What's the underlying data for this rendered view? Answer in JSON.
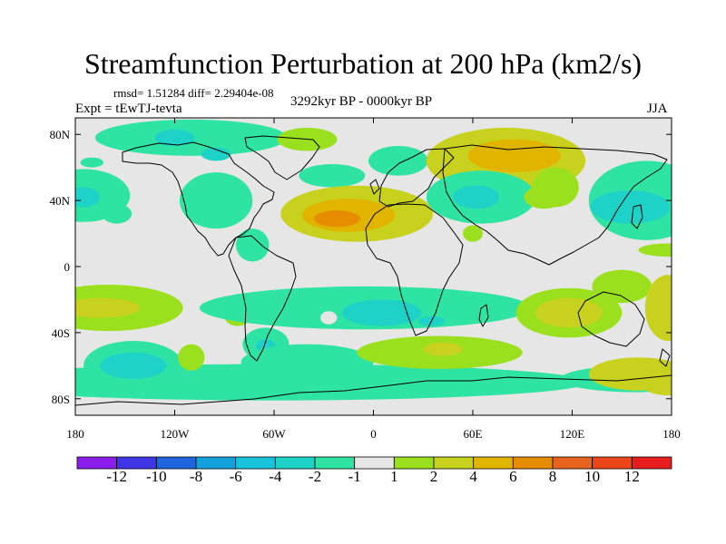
{
  "chart_data": {
    "type": "heatmap",
    "title": "Streamfunction Perturbation at 200 hPa (km2/s)",
    "subtitle_stats": "rmsd= 1.51284 diff= 2.29404e-08",
    "experiment": "Expt = tEwTJ-tevta",
    "period": "3292kyr BP - 0000kyr BP",
    "season": "JJA",
    "x_axis": {
      "range": [
        -180,
        180
      ],
      "ticks": [
        -180,
        -120,
        -60,
        0,
        60,
        120,
        180
      ],
      "tick_labels": [
        "180",
        "120W",
        "60W",
        "0",
        "60E",
        "120E",
        "180"
      ]
    },
    "y_axis": {
      "range": [
        -90,
        90
      ],
      "ticks": [
        80,
        40,
        0,
        -40,
        -80
      ],
      "tick_labels": [
        "80N",
        "40N",
        "0",
        "40S",
        "80S"
      ]
    },
    "colorbar": {
      "boundaries": [
        "-12",
        "-10",
        "-8",
        "-6",
        "-4",
        "-2",
        "-1",
        "1",
        "2",
        "4",
        "6",
        "8",
        "10",
        "12"
      ],
      "colors": [
        "#8c1eeb",
        "#3f35e6",
        "#1e64dc",
        "#13a0dc",
        "#1ac3dc",
        "#1ed2c8",
        "#2ee3a3",
        "#e6e6e6",
        "#9be01e",
        "#c8d21e",
        "#e1b400",
        "#e68c00",
        "#e6641e",
        "#eb4619",
        "#e61e1e"
      ]
    },
    "regions": [
      {
        "lon": -170,
        "lat": 63,
        "rlon": 7,
        "rlat": 3,
        "value": -1.5
      },
      {
        "lon": -110,
        "lat": 78,
        "rlon": 58,
        "rlat": 11,
        "value": -1.5
      },
      {
        "lon": -120,
        "lat": 78,
        "rlon": 12,
        "rlat": 5,
        "value": -2.5
      },
      {
        "lon": -95,
        "lat": 68,
        "rlon": 9,
        "rlat": 4,
        "value": -2.5
      },
      {
        "lon": -175,
        "lat": 43,
        "rlon": 28,
        "rlat": 16,
        "value": -1.5
      },
      {
        "lon": -175,
        "lat": 42,
        "rlon": 10,
        "rlat": 6,
        "value": -3
      },
      {
        "lon": -155,
        "lat": 32,
        "rlon": 9,
        "rlat": 6,
        "value": -1.5
      },
      {
        "lon": -95,
        "lat": 40,
        "rlon": 22,
        "rlat": 17,
        "value": -1.5
      },
      {
        "lon": -73,
        "lat": 13,
        "rlon": 10,
        "rlat": 10,
        "value": -1.5
      },
      {
        "lon": -40,
        "lat": 77,
        "rlon": 18,
        "rlat": 7,
        "value": 1.5
      },
      {
        "lon": -25,
        "lat": 55,
        "rlon": 20,
        "rlat": 7,
        "value": -1.5
      },
      {
        "lon": 15,
        "lat": 64,
        "rlon": 18,
        "rlat": 9,
        "value": -1.5
      },
      {
        "lon": 80,
        "lat": 64,
        "rlon": 48,
        "rlat": 20,
        "value": 2
      },
      {
        "lon": 85,
        "lat": 67,
        "rlon": 28,
        "rlat": 10,
        "value": 4.5
      },
      {
        "lon": -10,
        "lat": 32,
        "rlon": 46,
        "rlat": 17,
        "value": 2
      },
      {
        "lon": -15,
        "lat": 31,
        "rlon": 28,
        "rlat": 10,
        "value": 4
      },
      {
        "lon": -22,
        "lat": 29,
        "rlon": 14,
        "rlat": 5,
        "value": 6
      },
      {
        "lon": 65,
        "lat": 42,
        "rlon": 33,
        "rlat": 16,
        "value": -1.5
      },
      {
        "lon": 62,
        "lat": 42,
        "rlon": 14,
        "rlat": 7,
        "value": -3
      },
      {
        "lon": 60,
        "lat": 20,
        "rlon": 6,
        "rlat": 5,
        "value": 1.5
      },
      {
        "lon": 103,
        "lat": 42,
        "rlon": 12,
        "rlat": 7,
        "value": 1.5
      },
      {
        "lon": 110,
        "lat": 48,
        "rlon": 14,
        "rlat": 12,
        "value": 1.5
      },
      {
        "lon": 165,
        "lat": 40,
        "rlon": 35,
        "rlat": 24,
        "value": -1.5
      },
      {
        "lon": 155,
        "lat": 36,
        "rlon": 24,
        "rlat": 10,
        "value": -3
      },
      {
        "lon": 178,
        "lat": 10,
        "rlon": 18,
        "rlat": 4,
        "value": 1.5
      },
      {
        "lon": -160,
        "lat": -25,
        "rlon": 45,
        "rlat": 14,
        "value": 1.5
      },
      {
        "lon": -165,
        "lat": -25,
        "rlon": 24,
        "rlat": 6,
        "value": 3
      },
      {
        "lon": -82,
        "lat": -30,
        "rlon": 8,
        "rlat": 6,
        "value": 1.5
      },
      {
        "lon": -5,
        "lat": -25,
        "rlon": 100,
        "rlat": 13,
        "value": -1.5
      },
      {
        "lon": -60,
        "lat": -70,
        "rlon": 190,
        "rlat": 11,
        "value": -1.5
      },
      {
        "lon": 5,
        "lat": -28,
        "rlon": 24,
        "rlat": 8,
        "value": -2.5
      },
      {
        "lon": 35,
        "lat": -33,
        "rlon": 8,
        "rlat": 3,
        "value": -3.5
      },
      {
        "lon": -27,
        "lat": -31,
        "rlon": 5,
        "rlat": 4,
        "value": 0
      },
      {
        "lon": -145,
        "lat": -60,
        "rlon": 30,
        "rlat": 15,
        "value": -2
      },
      {
        "lon": -145,
        "lat": -60,
        "rlon": 20,
        "rlat": 8,
        "value": -4
      },
      {
        "lon": -110,
        "lat": -55,
        "rlon": 8,
        "rlat": 8,
        "value": 1.5
      },
      {
        "lon": -65,
        "lat": -47,
        "rlon": 14,
        "rlat": 10,
        "value": -1.5
      },
      {
        "lon": -65,
        "lat": -48,
        "rlon": 6,
        "rlat": 4,
        "value": -2.5
      },
      {
        "lon": -40,
        "lat": -58,
        "rlon": 40,
        "rlat": 11,
        "value": -1.5
      },
      {
        "lon": 40,
        "lat": -52,
        "rlon": 50,
        "rlat": 10,
        "value": 1.5
      },
      {
        "lon": 42,
        "lat": -50,
        "rlon": 12,
        "rlat": 4,
        "value": 3.5
      },
      {
        "lon": 118,
        "lat": -28,
        "rlon": 32,
        "rlat": 15,
        "value": 1.5
      },
      {
        "lon": 118,
        "lat": -28,
        "rlon": 20,
        "rlat": 9,
        "value": 3
      },
      {
        "lon": 150,
        "lat": -12,
        "rlon": 18,
        "rlat": 10,
        "value": 1.5
      },
      {
        "lon": 158,
        "lat": -68,
        "rlon": 45,
        "rlat": 8,
        "value": -1.5
      },
      {
        "lon": 160,
        "lat": -65,
        "rlon": 30,
        "rlat": 10,
        "value": 2
      },
      {
        "lon": 178,
        "lat": -25,
        "rlon": 14,
        "rlat": 20,
        "value": 2
      },
      {
        "lon": 180,
        "lat": -30,
        "rlon": 8,
        "rlat": 8,
        "value": 3
      },
      {
        "lon": 178,
        "lat": -72,
        "rlon": 15,
        "rlat": 6,
        "value": 3
      }
    ]
  }
}
